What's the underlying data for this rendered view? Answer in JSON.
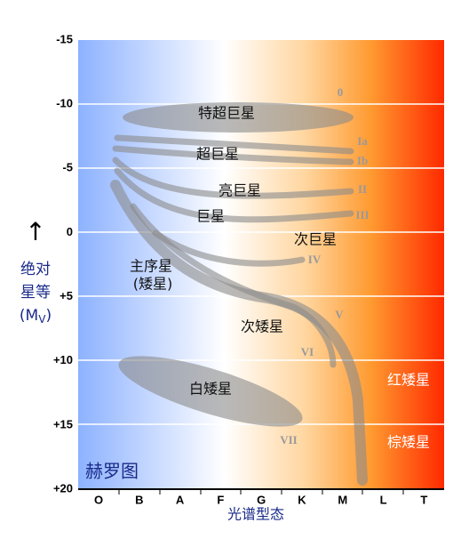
{
  "title": "赫罗图",
  "y_axis": {
    "label_lines": [
      "绝对",
      "星等"
    ],
    "unit_open": "(M",
    "unit_sub": "V",
    "unit_close": ")",
    "arrow": "↑",
    "ticks": [
      "-15",
      "-10",
      "-5",
      "0",
      "+5",
      "+10",
      "+15",
      "+20"
    ]
  },
  "x_axis": {
    "label": "光谱型态",
    "categories": [
      "O",
      "B",
      "A",
      "F",
      "G",
      "K",
      "M",
      "L",
      "T"
    ]
  },
  "regions": {
    "hypergiants": "特超巨星",
    "supergiants": "超巨星",
    "bright_giants": "亮巨星",
    "giants": "巨星",
    "subgiants": "次巨星",
    "main_sequence": "主序星",
    "dwarfs": "(矮星)",
    "subdwarfs": "次矮星",
    "white_dwarfs": "白矮星",
    "red_dwarfs": "红矮星",
    "brown_dwarfs": "棕矮星"
  },
  "classes": [
    "0",
    "Ia",
    "Ib",
    "II",
    "III",
    "IV",
    "V",
    "VI",
    "VII"
  ]
}
